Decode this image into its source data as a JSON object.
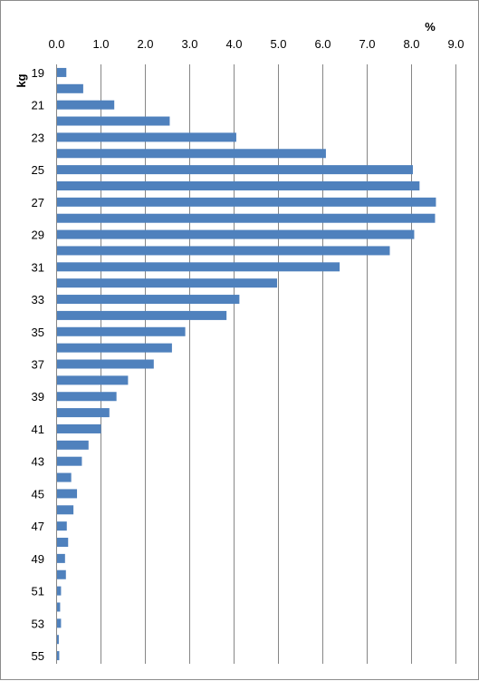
{
  "chart_data": {
    "type": "bar",
    "orientation": "horizontal",
    "x_unit": "%",
    "y_unit": "kg",
    "xlim": [
      0,
      9.0
    ],
    "x_ticks": [
      "0.0",
      "1.0",
      "2.0",
      "3.0",
      "4.0",
      "5.0",
      "6.0",
      "7.0",
      "8.0",
      "9.0"
    ],
    "categories": [
      19,
      20,
      21,
      22,
      23,
      24,
      25,
      26,
      27,
      28,
      29,
      30,
      31,
      32,
      33,
      34,
      35,
      36,
      37,
      38,
      39,
      40,
      41,
      42,
      43,
      44,
      45,
      46,
      47,
      48,
      49,
      50,
      51,
      52,
      53,
      54,
      55
    ],
    "y_tick_labels": [
      "19",
      "21",
      "23",
      "25",
      "27",
      "29",
      "31",
      "33",
      "35",
      "37",
      "39",
      "41",
      "43",
      "45",
      "47",
      "49",
      "51",
      "53",
      "55"
    ],
    "values": [
      0.22,
      0.6,
      1.3,
      2.55,
      4.05,
      6.07,
      8.03,
      8.18,
      8.55,
      8.53,
      8.06,
      7.51,
      6.38,
      4.97,
      4.12,
      3.83,
      2.9,
      2.6,
      2.19,
      1.61,
      1.35,
      1.19,
      1.0,
      0.72,
      0.57,
      0.33,
      0.46,
      0.38,
      0.23,
      0.26,
      0.19,
      0.21,
      0.1,
      0.08,
      0.1,
      0.05,
      0.06
    ],
    "bar_color": "#4f81bd",
    "grid": "vertical",
    "legend": "none"
  }
}
